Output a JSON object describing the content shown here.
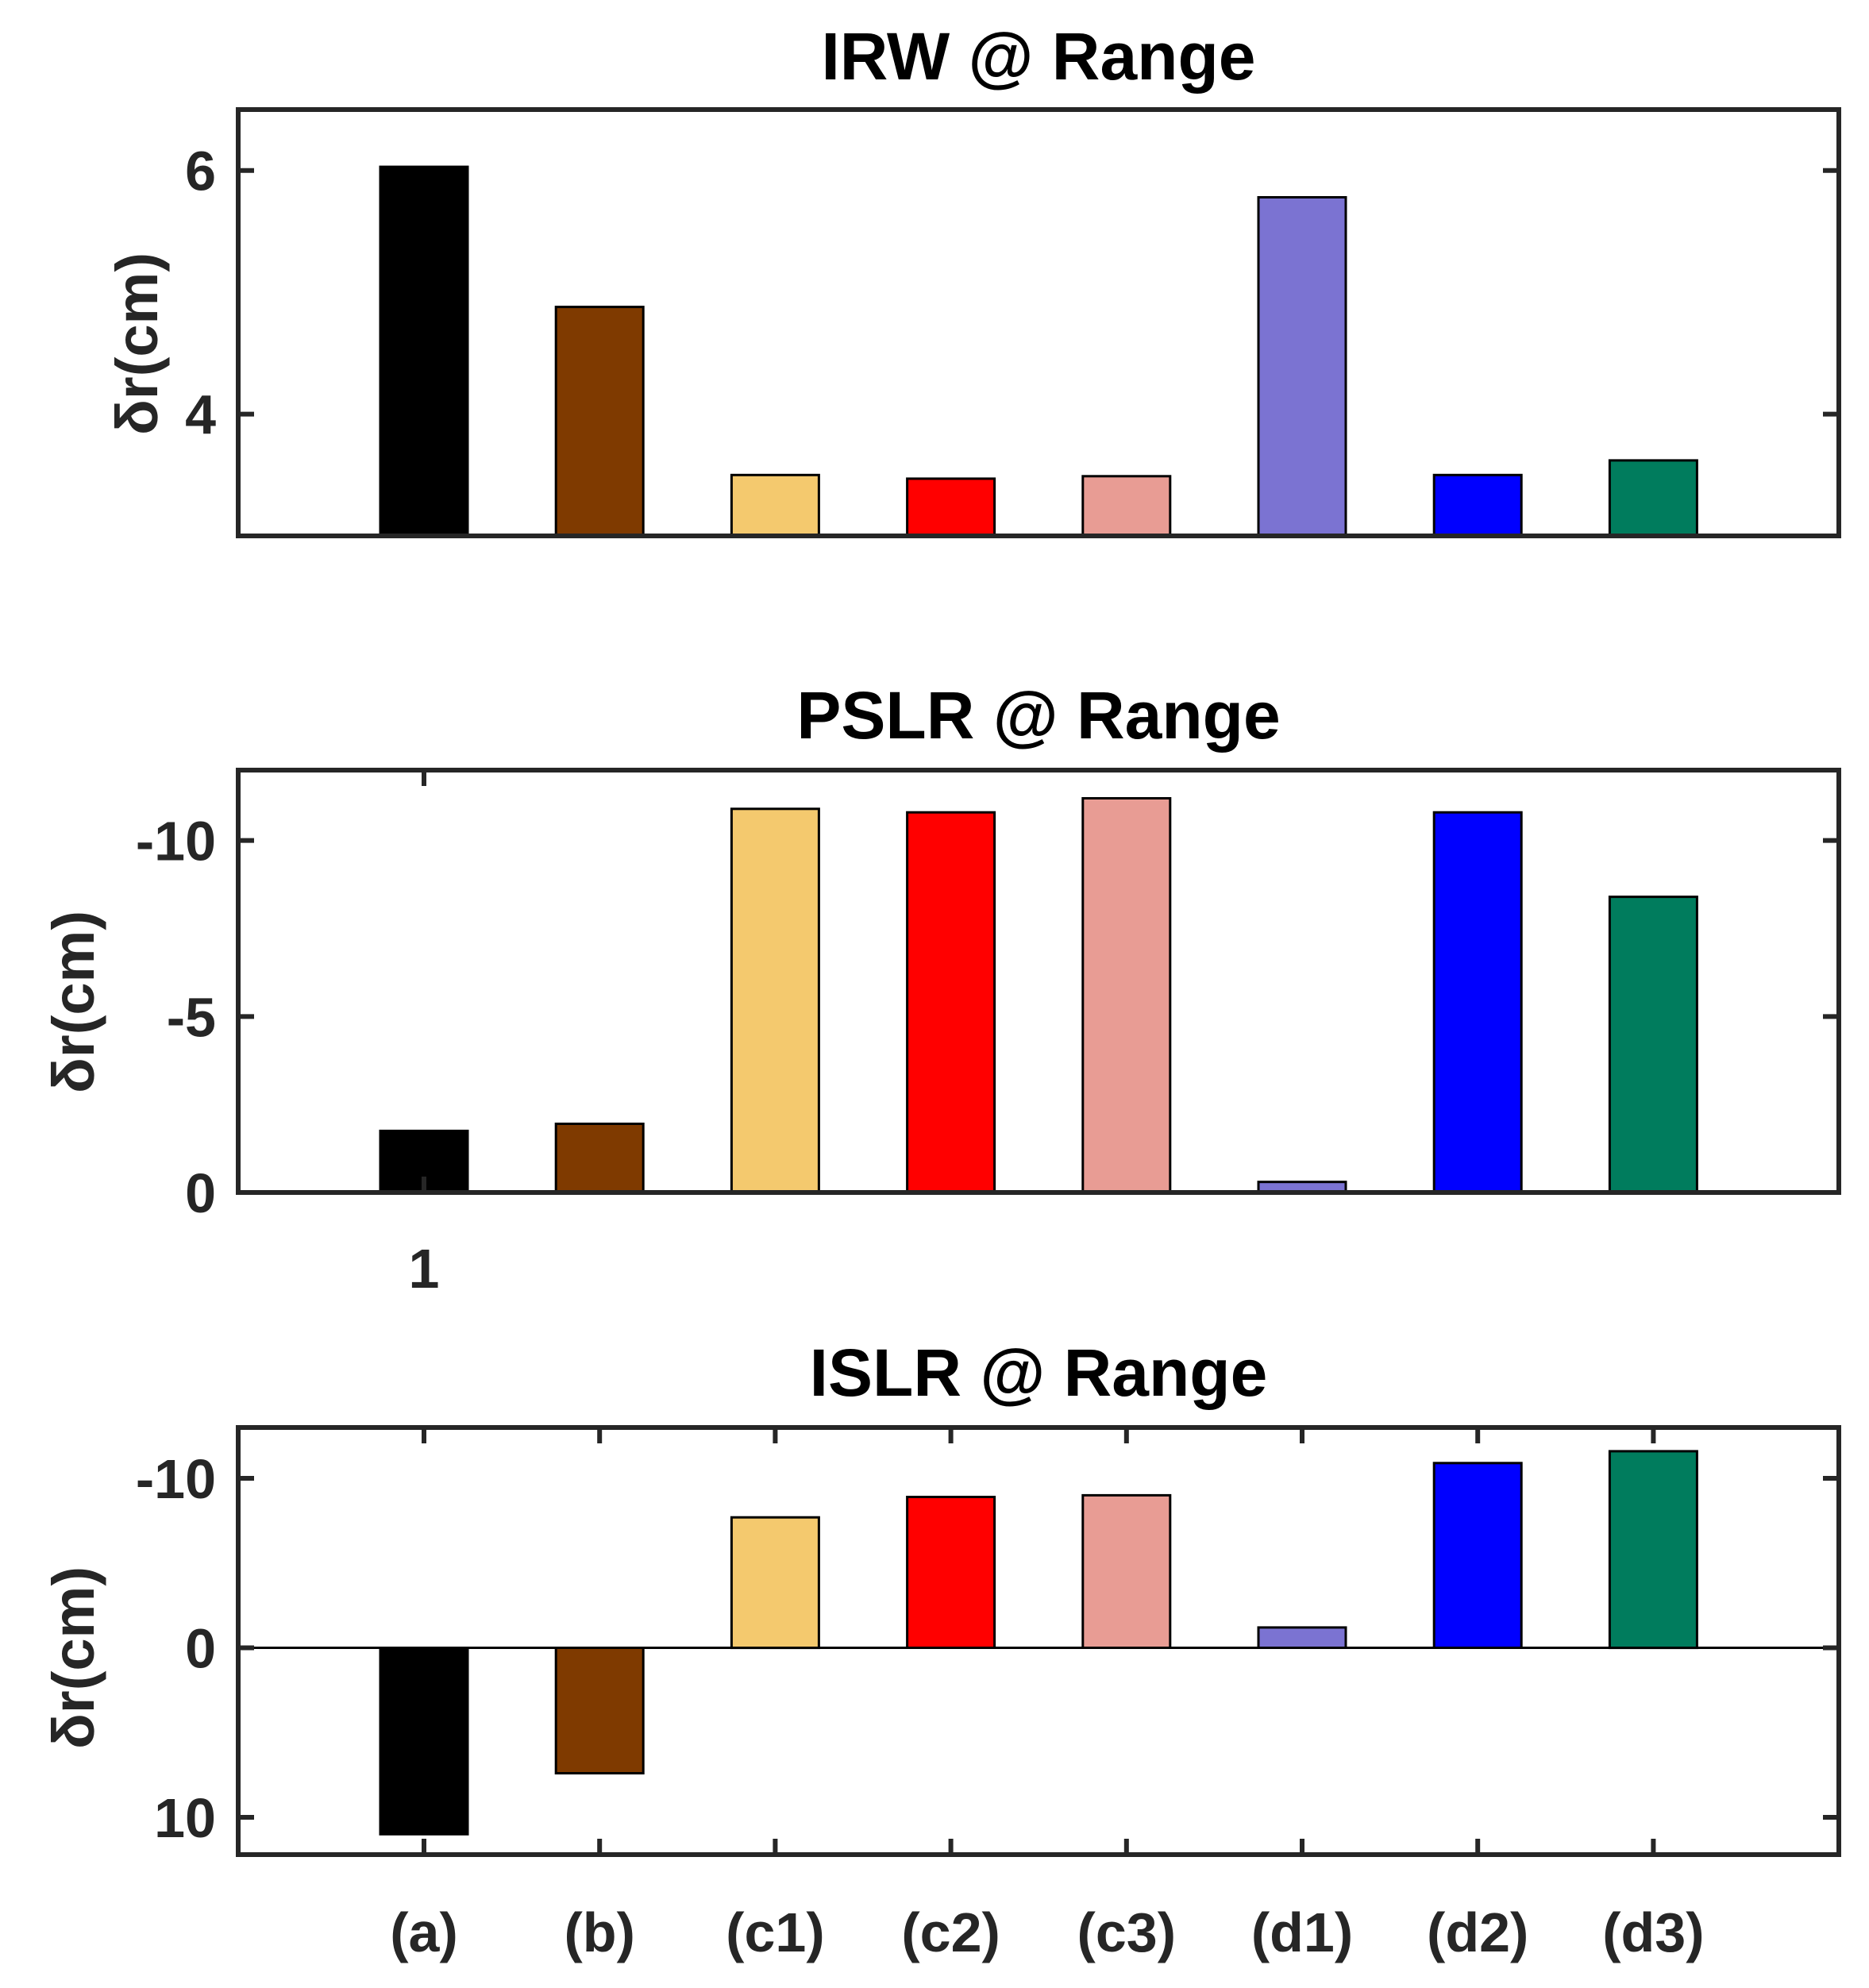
{
  "chart_data": [
    {
      "type": "bar",
      "title": "IRW @ Range",
      "ylabel": "δr(cm)",
      "xlabel": "",
      "categories": [
        "(a)",
        "(b)",
        "(c1)",
        "(c2)",
        "(c3)",
        "(d1)",
        "(d2)",
        "(d3)"
      ],
      "values": [
        6.03,
        4.88,
        3.5,
        3.47,
        3.49,
        5.78,
        3.5,
        3.62
      ],
      "colors": [
        "#000000",
        "#7F3A00",
        "#F4C96E",
        "#FF0000",
        "#E89C94",
        "#7B73D2",
        "#0000FF",
        "#007C5D"
      ],
      "ylim": [
        3,
        6.5
      ],
      "yticks": [
        4,
        6
      ],
      "ytick_labels": [
        "4",
        "6"
      ],
      "reversed": false,
      "show_xtick_labels": false,
      "xtick_labels": [],
      "grid": false
    },
    {
      "type": "bar",
      "title": "PSLR @ Range",
      "ylabel": "δr(cm)",
      "xlabel": "",
      "categories": [
        "(a)",
        "(b)",
        "(c1)",
        "(c2)",
        "(c3)",
        "(d1)",
        "(d2)",
        "(d3)"
      ],
      "values": [
        -1.75,
        -1.95,
        -10.9,
        -10.8,
        -11.2,
        -0.3,
        -10.8,
        -8.4
      ],
      "colors": [
        "#000000",
        "#7F3A00",
        "#F4C96E",
        "#FF0000",
        "#E89C94",
        "#7B73D2",
        "#0000FF",
        "#007C5D"
      ],
      "ylim": [
        0,
        -12
      ],
      "yticks": [
        0,
        -5,
        -10
      ],
      "ytick_labels": [
        "0",
        "-5",
        "-10"
      ],
      "reversed": true,
      "show_xtick_labels": true,
      "xtick_labels": [
        "1"
      ],
      "grid": false
    },
    {
      "type": "bar",
      "title": "ISLR @ Range",
      "ylabel": "δr(cm)",
      "xlabel": "",
      "categories": [
        "(a)",
        "(b)",
        "(c1)",
        "(c2)",
        "(c3)",
        "(d1)",
        "(d2)",
        "(d3)"
      ],
      "values": [
        11,
        7.4,
        -7.7,
        -8.9,
        -9.0,
        -1.2,
        -10.9,
        -11.6
      ],
      "colors": [
        "#000000",
        "#7F3A00",
        "#F4C96E",
        "#FF0000",
        "#E89C94",
        "#7B73D2",
        "#0000FF",
        "#007C5D"
      ],
      "ylim": [
        12.2,
        -13
      ],
      "yticks": [
        10,
        0,
        -10
      ],
      "ytick_labels": [
        "10",
        "0",
        "-10"
      ],
      "reversed": true,
      "show_xtick_labels": true,
      "xtick_labels": [
        "(a)",
        "(b)",
        "(c1)",
        "(c2)",
        "(c3)",
        "(d1)",
        "(d2)",
        "(d3)"
      ],
      "grid": false
    }
  ]
}
